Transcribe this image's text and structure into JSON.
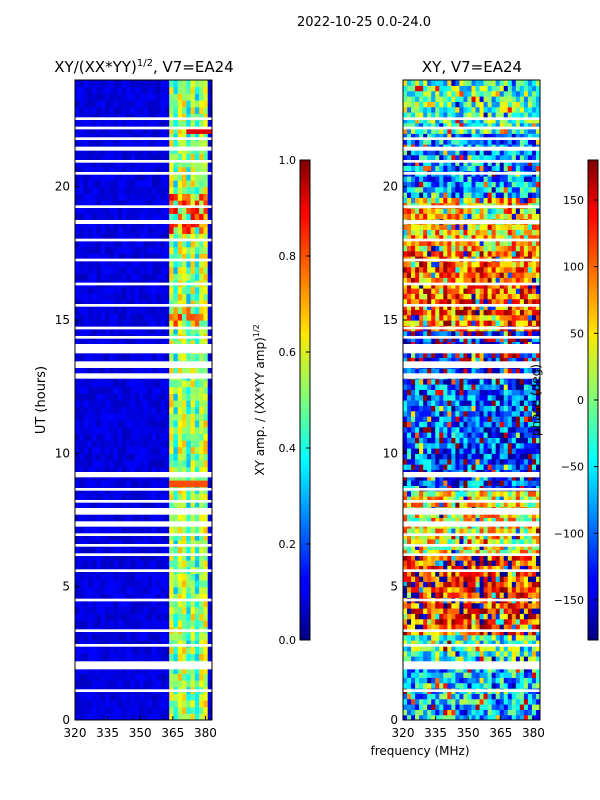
{
  "suptitle": "2022-10-25 0.0-24.0",
  "chart_data": [
    {
      "type": "heatmap",
      "title": "XY/(XX*YY)^1/2, V7=EA24",
      "title_main": "XY/(XX*YY)",
      "title_exp": "1/2",
      "title_suffix": ", V7=EA24",
      "xlabel": "",
      "ylabel": "UT (hours)",
      "xlim": [
        320,
        383
      ],
      "ylim": [
        0,
        24
      ],
      "xticks": [
        "320",
        "335",
        "350",
        "365",
        "380"
      ],
      "yticks": [
        "0",
        "5",
        "10",
        "15",
        "20"
      ],
      "colormap": "jet",
      "colorbar": {
        "label": "XY amp. / (XX*YY amp)^1/2",
        "label_main": "XY amp. / (XX*YY amp)",
        "label_exp": "1/2",
        "range": [
          0.0,
          1.0
        ],
        "ticks": [
          "0.0",
          "0.2",
          "0.4",
          "0.6",
          "0.8",
          "1.0"
        ]
      },
      "features": "Background amplitude near 0.05 (dark blue) for 320-362 MHz; elevated amplitude 0.3-0.65 in channels 362-381 MHz; peaks near 0.8-0.9 around 18.5-19 h and 21.9 h; data gaps (white) at several times"
    },
    {
      "type": "heatmap",
      "title": "XY, V7=EA24",
      "xlabel": "frequency (MHz)",
      "ylabel": "",
      "xlim": [
        320,
        383
      ],
      "ylim": [
        0,
        24
      ],
      "xticks": [
        "320",
        "335",
        "350",
        "365",
        "380"
      ],
      "yticks": [
        "0",
        "5",
        "10",
        "15",
        "20"
      ],
      "colormap": "jet",
      "colorbar": {
        "label": "phase (deg)",
        "range": [
          -180,
          180
        ],
        "ticks": [
          "150",
          "100",
          "50",
          "0",
          "−50",
          "−100",
          "−150"
        ]
      },
      "features": "Noisy phase values spanning -180 to 180 deg; warm (red/orange) bands at 3-6 h and 15-17 h, cool (blue/cyan) bands at 8-13 h and 20-24 h; same data gaps as left panel"
    }
  ],
  "gaps_hours": [
    [
      1.05,
      1.15
    ],
    [
      1.9,
      2.2
    ],
    [
      2.75,
      2.85
    ],
    [
      3.3,
      3.4
    ],
    [
      4.45,
      4.55
    ],
    [
      5.55,
      5.65
    ],
    [
      6.15,
      6.25
    ],
    [
      6.5,
      6.6
    ],
    [
      6.9,
      7.0
    ],
    [
      7.25,
      7.45
    ],
    [
      7.7,
      7.95
    ],
    [
      8.15,
      8.25
    ],
    [
      8.6,
      8.7
    ],
    [
      9.1,
      9.3
    ],
    [
      12.8,
      13.0
    ],
    [
      13.2,
      13.45
    ],
    [
      13.75,
      14.1
    ],
    [
      14.3,
      14.4
    ],
    [
      14.65,
      14.75
    ],
    [
      15.5,
      15.6
    ],
    [
      16.3,
      16.4
    ],
    [
      17.2,
      17.3
    ],
    [
      17.95,
      18.05
    ],
    [
      18.6,
      18.75
    ],
    [
      19.2,
      19.3
    ],
    [
      20.45,
      20.55
    ],
    [
      20.9,
      21.0
    ],
    [
      21.35,
      21.5
    ],
    [
      21.75,
      21.85
    ],
    [
      22.15,
      22.25
    ],
    [
      22.5,
      22.6
    ]
  ],
  "phase_regions": [
    {
      "h0": 0,
      "h1": 1.9,
      "mean": -60
    },
    {
      "h0": 1.9,
      "h1": 3.2,
      "mean": -20
    },
    {
      "h0": 3.2,
      "h1": 6.2,
      "mean": 120
    },
    {
      "h0": 6.2,
      "h1": 8.6,
      "mean": 40
    },
    {
      "h0": 8.6,
      "h1": 13.0,
      "mean": -110
    },
    {
      "h0": 13.0,
      "h1": 14.5,
      "mean": -140
    },
    {
      "h0": 14.5,
      "h1": 17.5,
      "mean": 100
    },
    {
      "h0": 17.5,
      "h1": 19.5,
      "mean": 60
    },
    {
      "h0": 19.5,
      "h1": 22.0,
      "mean": -80
    },
    {
      "h0": 22.0,
      "h1": 24.0,
      "mean": -20
    }
  ]
}
